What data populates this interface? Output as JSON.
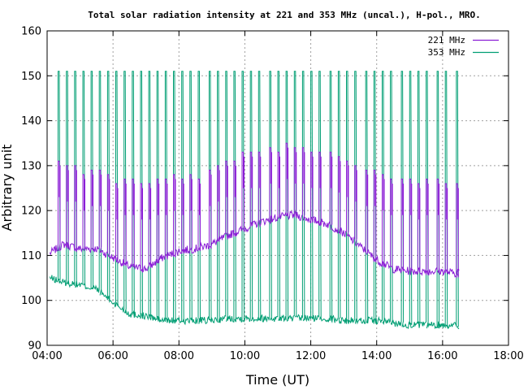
{
  "chart_data": {
    "type": "line",
    "title": "Total solar radiation intensity at 221 and 353 MHz (uncal.), H-pol., MRO.",
    "xlabel": "Time (UT)",
    "ylabel": "Arbitrary unit",
    "xlim": [
      "04:00",
      "18:00"
    ],
    "ylim": [
      90,
      160
    ],
    "x_ticks": [
      "04:00",
      "06:00",
      "08:00",
      "10:00",
      "12:00",
      "14:00",
      "16:00",
      "18:00"
    ],
    "y_ticks": [
      90,
      100,
      110,
      120,
      130,
      140,
      150,
      160
    ],
    "grid": true,
    "legend_position": "top-right",
    "series": [
      {
        "name": "221 MHz",
        "color": "#8b1ed6",
        "base_points": [
          [
            "04:05",
            110.5
          ],
          [
            "04:30",
            112.5
          ],
          [
            "05:00",
            111.5
          ],
          [
            "05:30",
            111.5
          ],
          [
            "06:00",
            109.5
          ],
          [
            "06:30",
            107.5
          ],
          [
            "07:00",
            107.0
          ],
          [
            "07:30",
            109.5
          ],
          [
            "08:00",
            111.0
          ],
          [
            "08:30",
            111.5
          ],
          [
            "09:00",
            112.5
          ],
          [
            "09:30",
            114.5
          ],
          [
            "10:00",
            116.0
          ],
          [
            "10:30",
            117.5
          ],
          [
            "11:00",
            118.5
          ],
          [
            "11:30",
            119.0
          ],
          [
            "12:00",
            118.0
          ],
          [
            "12:30",
            117.0
          ],
          [
            "13:00",
            115.0
          ],
          [
            "13:30",
            112.0
          ],
          [
            "14:00",
            109.0
          ],
          [
            "14:30",
            107.0
          ],
          [
            "15:00",
            106.5
          ],
          [
            "15:30",
            106.5
          ],
          [
            "16:00",
            106.5
          ],
          [
            "16:25",
            106.0
          ],
          [
            "16:30",
            107.0
          ]
        ],
        "spike_peaks": [
          [
            "04:20",
            131
          ],
          [
            "04:35",
            130
          ],
          [
            "04:50",
            130
          ],
          [
            "05:05",
            128
          ],
          [
            "05:20",
            129
          ],
          [
            "05:35",
            129
          ],
          [
            "05:50",
            128
          ],
          [
            "06:05",
            126
          ],
          [
            "06:20",
            127
          ],
          [
            "06:35",
            127
          ],
          [
            "06:50",
            126
          ],
          [
            "07:05",
            126
          ],
          [
            "07:20",
            127
          ],
          [
            "07:35",
            127
          ],
          [
            "07:50",
            128
          ],
          [
            "08:05",
            127
          ],
          [
            "08:20",
            128
          ],
          [
            "08:35",
            127
          ],
          [
            "08:55",
            129
          ],
          [
            "09:10",
            130
          ],
          [
            "09:25",
            131
          ],
          [
            "09:40",
            131
          ],
          [
            "09:55",
            133
          ],
          [
            "10:10",
            133
          ],
          [
            "10:25",
            133
          ],
          [
            "10:45",
            134
          ],
          [
            "11:00",
            133
          ],
          [
            "11:15",
            135
          ],
          [
            "11:30",
            134
          ],
          [
            "11:45",
            134
          ],
          [
            "12:00",
            133
          ],
          [
            "12:15",
            133
          ],
          [
            "12:35",
            133
          ],
          [
            "12:50",
            132
          ],
          [
            "13:05",
            131
          ],
          [
            "13:20",
            130
          ],
          [
            "13:40",
            129
          ],
          [
            "13:55",
            129
          ],
          [
            "14:10",
            128
          ],
          [
            "14:25",
            127
          ],
          [
            "14:45",
            127
          ],
          [
            "15:00",
            127
          ],
          [
            "15:15",
            126
          ],
          [
            "15:30",
            127
          ],
          [
            "15:50",
            127
          ],
          [
            "16:05",
            126
          ],
          [
            "16:25",
            126
          ]
        ]
      },
      {
        "name": "353 MHz",
        "color": "#009e73",
        "base_points": [
          [
            "04:05",
            105.0
          ],
          [
            "04:30",
            104.0
          ],
          [
            "05:00",
            103.5
          ],
          [
            "05:30",
            102.5
          ],
          [
            "05:45",
            101.0
          ],
          [
            "06:00",
            99.5
          ],
          [
            "06:30",
            97.0
          ],
          [
            "07:00",
            96.5
          ],
          [
            "07:30",
            95.5
          ],
          [
            "08:00",
            95.5
          ],
          [
            "08:30",
            95.5
          ],
          [
            "09:00",
            95.5
          ],
          [
            "09:30",
            96.0
          ],
          [
            "10:00",
            96.0
          ],
          [
            "10:30",
            96.0
          ],
          [
            "11:00",
            96.0
          ],
          [
            "11:30",
            96.0
          ],
          [
            "12:00",
            96.0
          ],
          [
            "12:30",
            96.0
          ],
          [
            "13:00",
            95.5
          ],
          [
            "13:30",
            95.5
          ],
          [
            "14:00",
            95.5
          ],
          [
            "14:30",
            95.0
          ],
          [
            "15:00",
            94.5
          ],
          [
            "15:30",
            94.5
          ],
          [
            "16:00",
            94.5
          ],
          [
            "16:25",
            94.5
          ],
          [
            "16:30",
            94.0
          ]
        ],
        "spike_peaks": [
          [
            "04:20",
            151
          ],
          [
            "04:35",
            151
          ],
          [
            "04:50",
            151
          ],
          [
            "05:05",
            151
          ],
          [
            "05:20",
            151
          ],
          [
            "05:35",
            151
          ],
          [
            "05:50",
            151
          ],
          [
            "06:05",
            151
          ],
          [
            "06:20",
            151
          ],
          [
            "06:35",
            151
          ],
          [
            "06:50",
            151
          ],
          [
            "07:05",
            151
          ],
          [
            "07:20",
            151
          ],
          [
            "07:35",
            151
          ],
          [
            "07:50",
            151
          ],
          [
            "08:05",
            151
          ],
          [
            "08:20",
            151
          ],
          [
            "08:35",
            151
          ],
          [
            "08:55",
            151
          ],
          [
            "09:10",
            151
          ],
          [
            "09:25",
            151
          ],
          [
            "09:40",
            151
          ],
          [
            "09:55",
            151
          ],
          [
            "10:10",
            151
          ],
          [
            "10:25",
            151
          ],
          [
            "10:45",
            151
          ],
          [
            "11:00",
            151
          ],
          [
            "11:15",
            151
          ],
          [
            "11:30",
            151
          ],
          [
            "11:45",
            151
          ],
          [
            "12:00",
            151
          ],
          [
            "12:15",
            151
          ],
          [
            "12:35",
            151
          ],
          [
            "12:50",
            151
          ],
          [
            "13:05",
            151
          ],
          [
            "13:20",
            151
          ],
          [
            "13:40",
            151
          ],
          [
            "13:55",
            151
          ],
          [
            "14:10",
            151
          ],
          [
            "14:25",
            151
          ],
          [
            "14:45",
            151
          ],
          [
            "15:00",
            151
          ],
          [
            "15:15",
            151
          ],
          [
            "15:30",
            151
          ],
          [
            "15:50",
            151
          ],
          [
            "16:05",
            151
          ],
          [
            "16:25",
            151
          ]
        ]
      }
    ]
  }
}
